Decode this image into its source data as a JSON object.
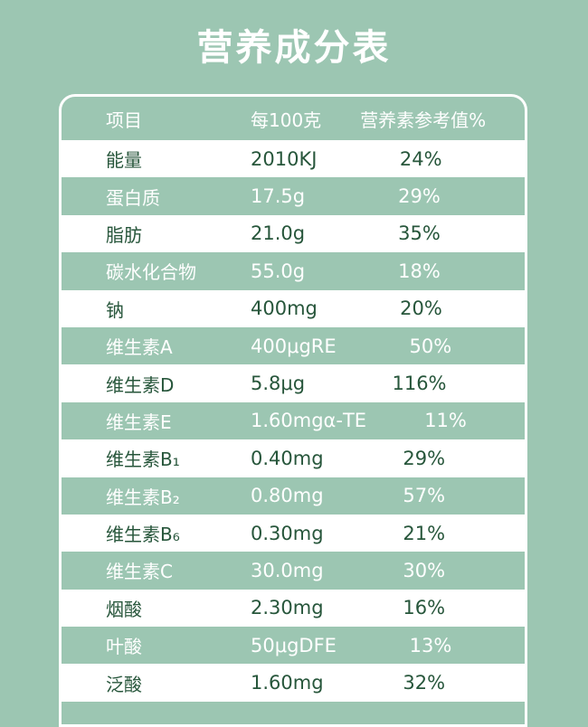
{
  "colors": {
    "background": "#9CC6B2",
    "white": "#FFFFFF",
    "dark_green": "#27563B"
  },
  "page": {
    "title": "营养成分表"
  },
  "table": {
    "columns": {
      "item": "项目",
      "per100g": "每100克",
      "nrv": "营养素参考值%"
    },
    "rows": [
      {
        "name": "能量",
        "per100g": "2010KJ",
        "nrv": "24%"
      },
      {
        "name": "蛋白质",
        "per100g": "17.5g",
        "nrv": "29%"
      },
      {
        "name": "脂肪",
        "per100g": "21.0g",
        "nrv": "35%"
      },
      {
        "name": "碳水化合物",
        "per100g": "55.0g",
        "nrv": "18%"
      },
      {
        "name": "钠",
        "per100g": "400mg",
        "nrv": "20%"
      },
      {
        "name": "维生素A",
        "per100g": "400μgRE",
        "nrv": "50%"
      },
      {
        "name": "维生素D",
        "per100g": "5.8μg",
        "nrv": "116%"
      },
      {
        "name": "维生素E",
        "per100g": "1.60mgα-TE",
        "nrv": "11%"
      },
      {
        "name": "维生素B₁",
        "per100g": "0.40mg",
        "nrv": "29%"
      },
      {
        "name": "维生素B₂",
        "per100g": "0.80mg",
        "nrv": "57%"
      },
      {
        "name": "维生素B₆",
        "per100g": "0.30mg",
        "nrv": "21%"
      },
      {
        "name": "维生素C",
        "per100g": "30.0mg",
        "nrv": "30%"
      },
      {
        "name": "烟酸",
        "per100g": "2.30mg",
        "nrv": "16%"
      },
      {
        "name": "叶酸",
        "per100g": "50μgDFE",
        "nrv": "13%"
      },
      {
        "name": "泛酸",
        "per100g": "1.60mg",
        "nrv": "32%"
      }
    ]
  }
}
